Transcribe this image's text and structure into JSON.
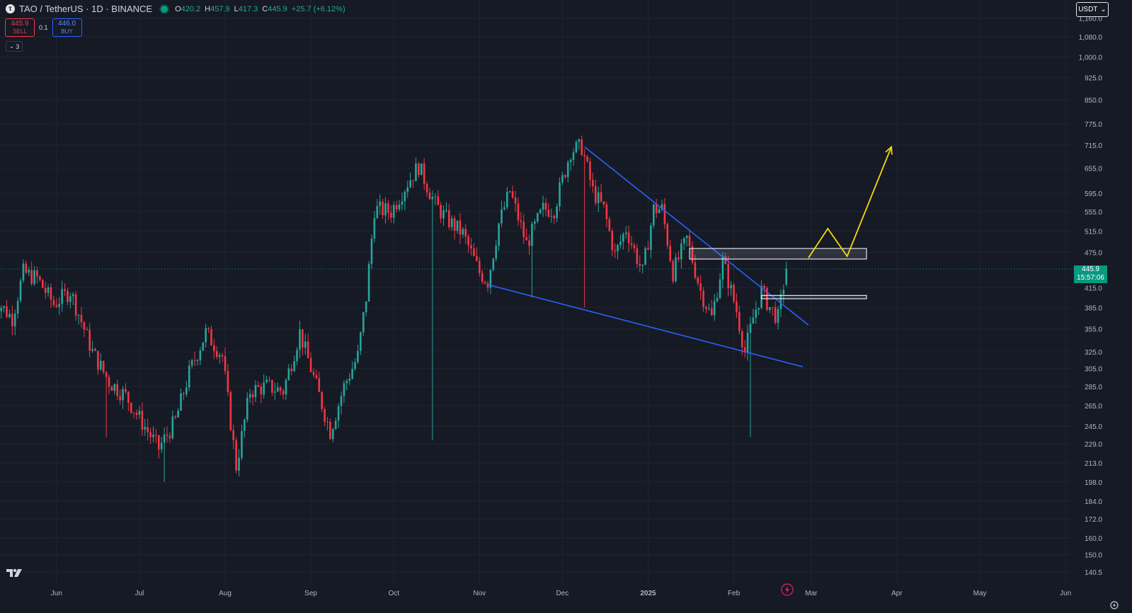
{
  "header": {
    "symbol_title": "TAO / TetherUS · 1D · BINANCE",
    "ohlc": [
      {
        "k": "O",
        "v": "420.2"
      },
      {
        "k": "H",
        "v": "457.9"
      },
      {
        "k": "L",
        "v": "417.3"
      },
      {
        "k": "C",
        "v": "445.9"
      },
      {
        "k": "",
        "v": "+25.7 (+6.12%)"
      }
    ]
  },
  "trade": {
    "sell_price": "445.9",
    "sell_label": "SELL",
    "spread": "0.1",
    "buy_price": "446.0",
    "buy_label": "BUY"
  },
  "indicators_toggle": "3",
  "currency_selector": "USDT",
  "last_price": {
    "price": "445.9",
    "countdown": "15:57:06"
  },
  "colors": {
    "background": "#161a25",
    "up": "#26a69a",
    "down": "#f23645",
    "trendline": "#2962ff",
    "projection": "#f5d90a",
    "zone": "#e0e3eb"
  },
  "icons": [
    "tradingview-logo-icon",
    "lightning-icon",
    "settings-gear-icon",
    "chevron-down-icon"
  ],
  "chart_data": {
    "type": "candlestick",
    "scale": "log",
    "grid": true,
    "y_ticks": [
      "140.5",
      "150.0",
      "160.0",
      "172.0",
      "184.0",
      "198.0",
      "213.0",
      "229.0",
      "245.0",
      "265.0",
      "285.0",
      "305.0",
      "325.0",
      "355.0",
      "385.0",
      "415.0",
      "475.0",
      "515.0",
      "555.0",
      "595.0",
      "655.0",
      "715.0",
      "775.0",
      "850.0",
      "925.0",
      "1,000.0",
      "1,080.0",
      "1,160.0"
    ],
    "x_ticks": [
      "Jun",
      "Jul",
      "Aug",
      "Sep",
      "Oct",
      "Nov",
      "Dec",
      "2025",
      "Feb",
      "Mar",
      "Apr",
      "May",
      "Jun"
    ],
    "date_range": [
      "2024-05-09",
      "2025-02-20"
    ],
    "close_series": [
      [
        "2024-05-09",
        400
      ],
      [
        "2024-05-16",
        370
      ],
      [
        "2024-05-20",
        440
      ],
      [
        "2024-05-25",
        430
      ],
      [
        "2024-05-31",
        390
      ],
      [
        "2024-06-06",
        410
      ],
      [
        "2024-06-10",
        365
      ],
      [
        "2024-06-14",
        325
      ],
      [
        "2024-06-20",
        290
      ],
      [
        "2024-06-26",
        275
      ],
      [
        "2024-07-04",
        240
      ],
      [
        "2024-07-08",
        225
      ],
      [
        "2024-07-14",
        250
      ],
      [
        "2024-07-19",
        300
      ],
      [
        "2024-07-25",
        350
      ],
      [
        "2024-07-31",
        320
      ],
      [
        "2024-08-05",
        210
      ],
      [
        "2024-08-10",
        280
      ],
      [
        "2024-08-16",
        285
      ],
      [
        "2024-08-22",
        280
      ],
      [
        "2024-08-28",
        350
      ],
      [
        "2024-09-03",
        285
      ],
      [
        "2024-09-08",
        240
      ],
      [
        "2024-09-13",
        285
      ],
      [
        "2024-09-18",
        320
      ],
      [
        "2024-09-21",
        400
      ],
      [
        "2024-09-24",
        560
      ],
      [
        "2024-09-30",
        555
      ],
      [
        "2024-10-06",
        620
      ],
      [
        "2024-10-10",
        660
      ],
      [
        "2024-10-16",
        570
      ],
      [
        "2024-10-20",
        540
      ],
      [
        "2024-10-26",
        510
      ],
      [
        "2024-11-01",
        440
      ],
      [
        "2024-11-04",
        425
      ],
      [
        "2024-11-08",
        530
      ],
      [
        "2024-11-12",
        600
      ],
      [
        "2024-11-18",
        490
      ],
      [
        "2024-11-24",
        560
      ],
      [
        "2024-11-28",
        560
      ],
      [
        "2024-12-04",
        700
      ],
      [
        "2024-12-08",
        710
      ],
      [
        "2024-12-12",
        600
      ],
      [
        "2024-12-16",
        560
      ],
      [
        "2024-12-20",
        470
      ],
      [
        "2024-12-24",
        520
      ],
      [
        "2024-12-30",
        440
      ],
      [
        "2025-01-03",
        560
      ],
      [
        "2025-01-06",
        560
      ],
      [
        "2025-01-10",
        440
      ],
      [
        "2025-01-15",
        500
      ],
      [
        "2025-01-20",
        410
      ],
      [
        "2025-01-24",
        370
      ],
      [
        "2025-01-28",
        460
      ],
      [
        "2025-02-02",
        380
      ],
      [
        "2025-02-05",
        325
      ],
      [
        "2025-02-08",
        370
      ],
      [
        "2025-02-11",
        410
      ],
      [
        "2025-02-14",
        385
      ],
      [
        "2025-02-17",
        370
      ],
      [
        "2025-02-20",
        445.9
      ]
    ],
    "drawings": {
      "upper_trendline": [
        [
          "2024-12-09",
          710
        ],
        [
          "2025-02-28",
          360
        ]
      ],
      "lower_trendline": [
        [
          "2024-11-04",
          420
        ],
        [
          "2025-02-26",
          307
        ]
      ],
      "resistance_zone": {
        "from": "2025-01-16",
        "to": "2025-03-21",
        "low": 463,
        "high": 482
      },
      "retest_zone": {
        "from": "2025-02-11",
        "to": "2025-03-21",
        "low": 398,
        "high": 403
      },
      "projection_path": [
        [
          "2025-02-28",
          465
        ],
        [
          "2025-03-07",
          520
        ],
        [
          "2025-03-14",
          468
        ],
        [
          "2025-03-30",
          710
        ]
      ]
    }
  }
}
